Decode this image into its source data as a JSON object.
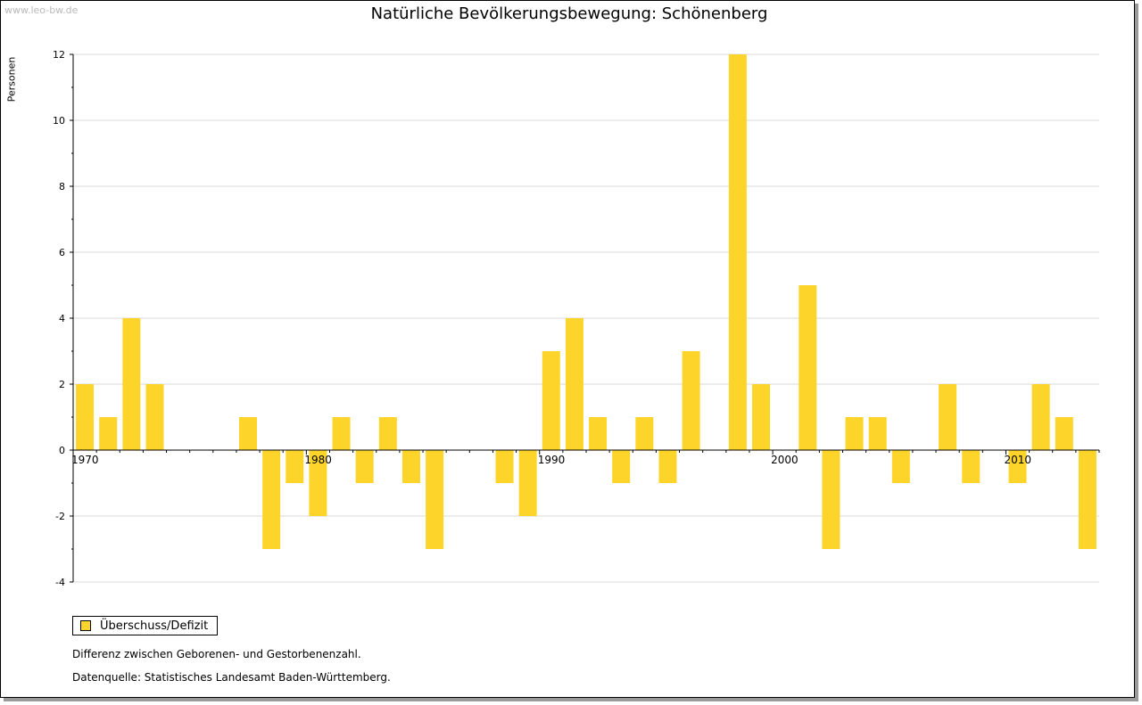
{
  "watermark": "www.leo-bw.de",
  "colors": {
    "bar": "#fdd52a",
    "grid": "#d9d9d9",
    "axis": "#000000"
  },
  "chart_data": {
    "type": "bar",
    "title": "Natürliche Bevölkerungsbewegung: Schönenberg",
    "ylabel": "Personen",
    "xlabel": "",
    "ylim": [
      -4,
      12
    ],
    "yticks": [
      -4,
      -2,
      0,
      2,
      4,
      6,
      8,
      10,
      12
    ],
    "xtick_labels": [
      "1970",
      "1980",
      "1990",
      "2000",
      "2010"
    ],
    "grid": true,
    "legend_position": "bottom-left",
    "series": [
      {
        "name": "Überschuss/Defizit",
        "x": [
          1970,
          1971,
          1972,
          1973,
          1974,
          1975,
          1976,
          1977,
          1978,
          1979,
          1980,
          1981,
          1982,
          1983,
          1984,
          1985,
          1986,
          1987,
          1988,
          1989,
          1990,
          1991,
          1992,
          1993,
          1994,
          1995,
          1996,
          1997,
          1998,
          1999,
          2000,
          2001,
          2002,
          2003,
          2004,
          2005,
          2006,
          2007,
          2008,
          2009,
          2010,
          2011,
          2012,
          2013
        ],
        "values": [
          2,
          1,
          4,
          2,
          0,
          0,
          0,
          1,
          -3,
          -1,
          -2,
          1,
          -1,
          1,
          -1,
          -3,
          0,
          0,
          -1,
          -2,
          3,
          4,
          1,
          -1,
          1,
          -1,
          3,
          0,
          12,
          2,
          0,
          5,
          -3,
          1,
          1,
          -1,
          0,
          2,
          -1,
          0,
          -1,
          2,
          1,
          -3
        ]
      }
    ]
  },
  "legend": {
    "label": "Überschuss/Defizit"
  },
  "notes": [
    "Differenz zwischen Geborenen- und Gestorbenenzahl.",
    "Datenquelle: Statistisches Landesamt Baden-Württemberg."
  ]
}
